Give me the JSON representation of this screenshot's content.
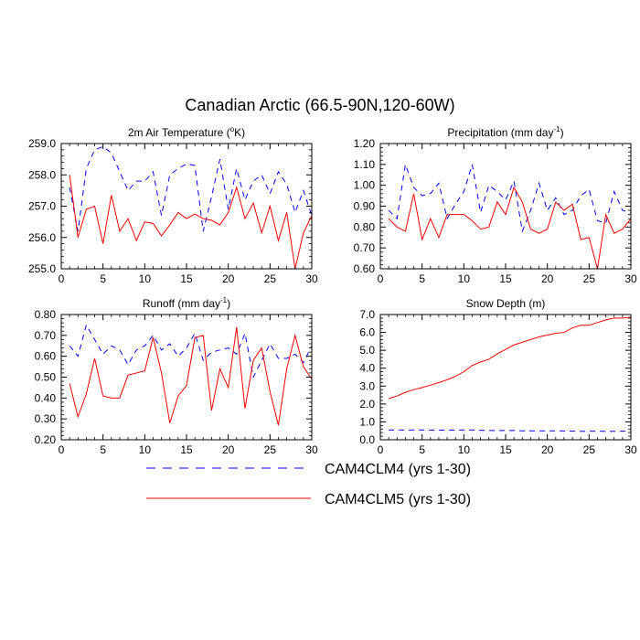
{
  "figure_title": "Canadian Arctic (66.5-90N,120-60W)",
  "legend": {
    "entries": [
      {
        "label": "CAM4CLM4 (yrs 1-30)",
        "color": "#0000ff",
        "style": "dashed"
      },
      {
        "label": "CAM4CLM5 (yrs 1-30)",
        "color": "#ff0000",
        "style": "solid"
      }
    ],
    "placement": "bottom-center"
  },
  "chart_data": [
    {
      "id": "temp",
      "type": "line",
      "title": "2m Air Temperature (",
      "title_sup": "o",
      "title_after": "K)",
      "xlabel": "",
      "ylabel": "",
      "xlim": [
        0,
        30
      ],
      "ylim": [
        255.0,
        259.0
      ],
      "xticks": [
        0,
        5,
        10,
        15,
        20,
        25,
        30
      ],
      "xtick_labels": [
        "0",
        "5",
        "10",
        "15",
        "20",
        "25",
        "30"
      ],
      "yticks": [
        255.0,
        256.0,
        257.0,
        258.0,
        259.0
      ],
      "ytick_labels": [
        "255.0",
        "256.0",
        "257.0",
        "258.0",
        "259.0"
      ],
      "x": [
        1,
        2,
        3,
        4,
        5,
        6,
        7,
        8,
        9,
        10,
        11,
        12,
        13,
        14,
        15,
        16,
        17,
        18,
        19,
        20,
        21,
        22,
        23,
        24,
        25,
        26,
        27,
        28,
        29,
        30
      ],
      "series": [
        {
          "name": "CAM4CLM4 (yrs 1-30)",
          "color": "#0000ff",
          "dash": true,
          "values": [
            257.6,
            256.2,
            258.2,
            258.8,
            258.9,
            258.7,
            258.1,
            257.5,
            257.8,
            257.8,
            258.1,
            256.7,
            258.0,
            258.2,
            258.35,
            258.3,
            256.2,
            257.3,
            258.5,
            256.9,
            258.2,
            257.2,
            257.8,
            258.0,
            257.4,
            258.1,
            257.7,
            256.8,
            257.5,
            256.7
          ]
        },
        {
          "name": "CAM4CLM5 (yrs 1-30)",
          "color": "#ff0000",
          "dash": false,
          "values": [
            258.0,
            256.0,
            256.9,
            257.0,
            255.8,
            257.35,
            256.2,
            256.6,
            255.9,
            256.5,
            256.45,
            256.05,
            256.4,
            256.8,
            256.6,
            256.75,
            256.6,
            256.55,
            256.4,
            256.8,
            257.6,
            256.6,
            257.1,
            256.15,
            257.0,
            255.9,
            256.8,
            255.0,
            256.15,
            256.7
          ]
        }
      ]
    },
    {
      "id": "precip",
      "type": "line",
      "title": "Precipitation (mm day",
      "title_sup": "-1",
      "title_after": ")",
      "xlabel": "",
      "ylabel": "",
      "xlim": [
        0,
        30
      ],
      "ylim": [
        0.6,
        1.2
      ],
      "xticks": [
        0,
        5,
        10,
        15,
        20,
        25,
        30
      ],
      "xtick_labels": [
        "0",
        "5",
        "10",
        "15",
        "20",
        "25",
        "30"
      ],
      "yticks": [
        0.6,
        0.7,
        0.8,
        0.9,
        1.0,
        1.1,
        1.2
      ],
      "ytick_labels": [
        "0.60",
        "0.70",
        "0.80",
        "0.90",
        "1.00",
        "1.10",
        "1.20"
      ],
      "x": [
        1,
        2,
        3,
        4,
        5,
        6,
        7,
        8,
        9,
        10,
        11,
        12,
        13,
        14,
        15,
        16,
        17,
        18,
        19,
        20,
        21,
        22,
        23,
        24,
        25,
        26,
        27,
        28,
        29,
        30
      ],
      "series": [
        {
          "name": "CAM4CLM4 (yrs 1-30)",
          "color": "#0000ff",
          "dash": true,
          "values": [
            0.88,
            0.84,
            1.1,
            0.99,
            0.95,
            0.96,
            1.01,
            0.84,
            0.91,
            0.97,
            1.1,
            0.87,
            1.0,
            0.97,
            0.93,
            1.02,
            0.78,
            0.88,
            1.01,
            0.88,
            0.94,
            0.86,
            0.88,
            0.95,
            0.98,
            0.83,
            0.82,
            0.97,
            0.88,
            0.87
          ]
        },
        {
          "name": "CAM4CLM5 (yrs 1-30)",
          "color": "#ff0000",
          "dash": false,
          "values": [
            0.84,
            0.8,
            0.78,
            0.96,
            0.74,
            0.84,
            0.75,
            0.86,
            0.86,
            0.86,
            0.83,
            0.79,
            0.8,
            0.92,
            0.86,
            0.99,
            0.92,
            0.79,
            0.77,
            0.79,
            0.92,
            0.88,
            0.91,
            0.74,
            0.75,
            0.6,
            0.86,
            0.77,
            0.79,
            0.84
          ]
        }
      ]
    },
    {
      "id": "runoff",
      "type": "line",
      "title": "Runoff (mm day",
      "title_sup": "-1",
      "title_after": ")",
      "xlabel": "",
      "ylabel": "",
      "xlim": [
        0,
        30
      ],
      "ylim": [
        0.2,
        0.8
      ],
      "xticks": [
        0,
        5,
        10,
        15,
        20,
        25,
        30
      ],
      "xtick_labels": [
        "0",
        "5",
        "10",
        "15",
        "20",
        "25",
        "30"
      ],
      "yticks": [
        0.2,
        0.3,
        0.4,
        0.5,
        0.6,
        0.7,
        0.8
      ],
      "ytick_labels": [
        "0.20",
        "0.30",
        "0.40",
        "0.50",
        "0.60",
        "0.70",
        "0.80"
      ],
      "x": [
        1,
        2,
        3,
        4,
        5,
        6,
        7,
        8,
        9,
        10,
        11,
        12,
        13,
        14,
        15,
        16,
        17,
        18,
        19,
        20,
        21,
        22,
        23,
        24,
        25,
        26,
        27,
        28,
        29,
        30
      ],
      "series": [
        {
          "name": "CAM4CLM4 (yrs 1-30)",
          "color": "#0000ff",
          "dash": true,
          "values": [
            0.65,
            0.6,
            0.75,
            0.68,
            0.61,
            0.65,
            0.63,
            0.56,
            0.63,
            0.65,
            0.7,
            0.63,
            0.66,
            0.6,
            0.64,
            0.71,
            0.58,
            0.62,
            0.63,
            0.64,
            0.61,
            0.71,
            0.5,
            0.58,
            0.66,
            0.59,
            0.59,
            0.61,
            0.57,
            0.65
          ]
        },
        {
          "name": "CAM4CLM5 (yrs 1-30)",
          "color": "#ff0000",
          "dash": false,
          "values": [
            0.47,
            0.31,
            0.42,
            0.59,
            0.41,
            0.4,
            0.4,
            0.51,
            0.52,
            0.53,
            0.69,
            0.52,
            0.28,
            0.41,
            0.46,
            0.69,
            0.7,
            0.34,
            0.54,
            0.45,
            0.74,
            0.35,
            0.58,
            0.64,
            0.43,
            0.27,
            0.54,
            0.7,
            0.55,
            0.49
          ]
        }
      ]
    },
    {
      "id": "snow",
      "type": "line",
      "title": "Snow Depth (m)",
      "title_sup": "",
      "title_after": "",
      "xlabel": "",
      "ylabel": "",
      "xlim": [
        0,
        30
      ],
      "ylim": [
        0.0,
        7.0
      ],
      "xticks": [
        0,
        5,
        10,
        15,
        20,
        25,
        30
      ],
      "xtick_labels": [
        "0",
        "5",
        "10",
        "15",
        "20",
        "25",
        "30"
      ],
      "yticks": [
        0.0,
        1.0,
        2.0,
        3.0,
        4.0,
        5.0,
        6.0,
        7.0
      ],
      "ytick_labels": [
        "0.0",
        "1.0",
        "2.0",
        "3.0",
        "4.0",
        "5.0",
        "6.0",
        "7.0"
      ],
      "x": [
        1,
        2,
        3,
        4,
        5,
        6,
        7,
        8,
        9,
        10,
        11,
        12,
        13,
        14,
        15,
        16,
        17,
        18,
        19,
        20,
        21,
        22,
        23,
        24,
        25,
        26,
        27,
        28,
        29,
        30
      ],
      "series": [
        {
          "name": "CAM4CLM4 (yrs 1-30)",
          "color": "#0000ff",
          "dash": true,
          "values": [
            0.55,
            0.55,
            0.54,
            0.55,
            0.55,
            0.54,
            0.54,
            0.54,
            0.54,
            0.55,
            0.55,
            0.53,
            0.52,
            0.52,
            0.52,
            0.52,
            0.5,
            0.5,
            0.5,
            0.5,
            0.5,
            0.49,
            0.48,
            0.47,
            0.48,
            0.48,
            0.47,
            0.47,
            0.48,
            0.48
          ]
        },
        {
          "name": "CAM4CLM5 (yrs 1-30)",
          "color": "#ff0000",
          "dash": false,
          "values": [
            2.3,
            2.45,
            2.65,
            2.8,
            2.92,
            3.05,
            3.2,
            3.35,
            3.55,
            3.8,
            4.15,
            4.35,
            4.5,
            4.8,
            5.05,
            5.3,
            5.45,
            5.6,
            5.75,
            5.85,
            5.95,
            6.0,
            6.25,
            6.4,
            6.4,
            6.55,
            6.7,
            6.8,
            6.8,
            6.85
          ]
        }
      ]
    }
  ]
}
